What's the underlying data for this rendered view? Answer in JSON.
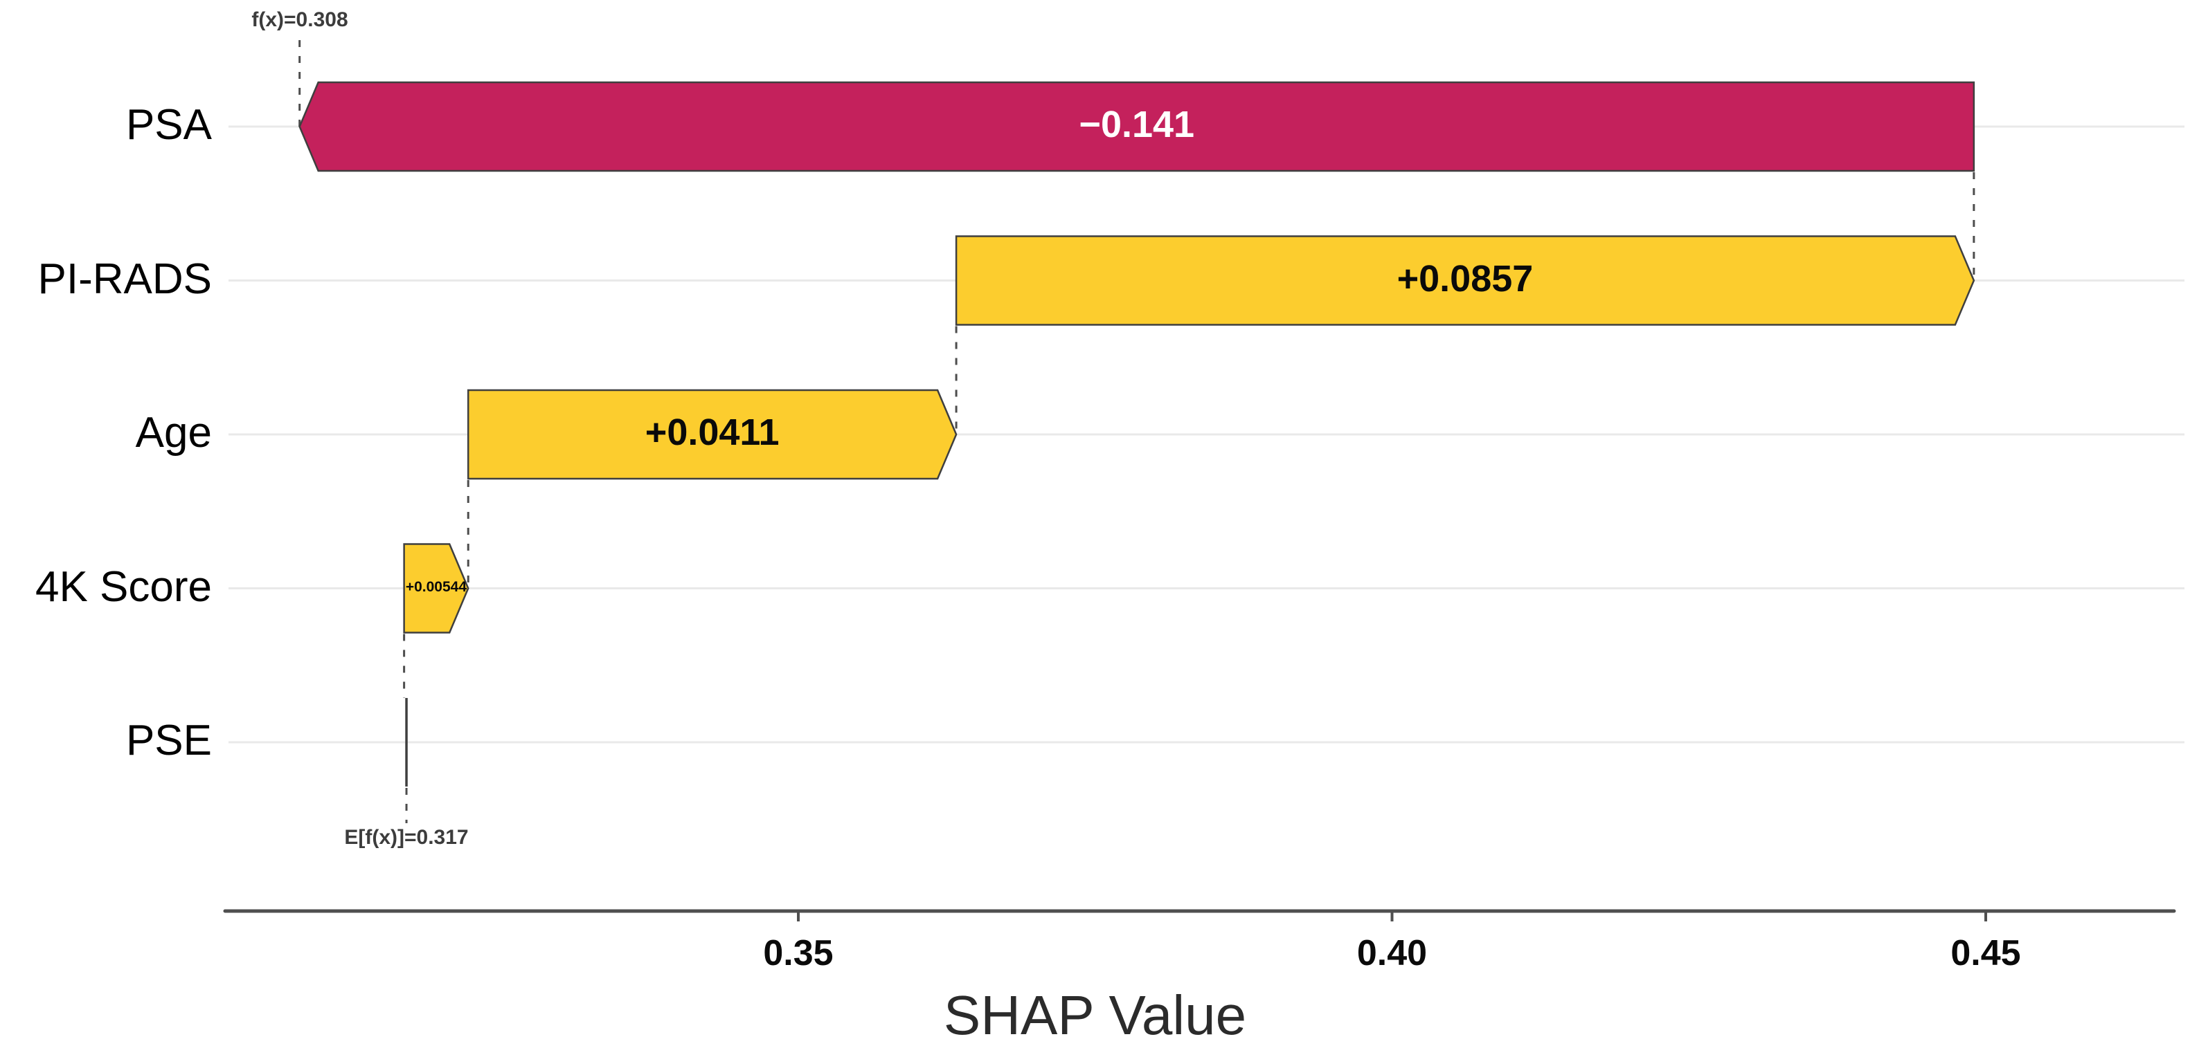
{
  "chart_data": {
    "type": "bar",
    "subtype": "shap-waterfall",
    "title": "",
    "xlabel": "SHAP Value",
    "fx_label": "f(x)=0.308",
    "fx_value": 0.308,
    "base_value_label": "E[f(x)]=0.317",
    "base_value": 0.317,
    "x_ticks": [
      0.35,
      0.4,
      0.45
    ],
    "x_tick_labels": [
      "0.35",
      "0.40",
      "0.45"
    ],
    "xlim": [
      0.302,
      0.467
    ],
    "grid": true,
    "features": [
      {
        "name": "PSA",
        "shap": -0.141,
        "label": "−0.141",
        "start": 0.449,
        "end": 0.308,
        "direction": "negative",
        "label_size": "normal"
      },
      {
        "name": "PI-RADS",
        "shap": 0.0857,
        "label": "+0.0857",
        "start": 0.3633,
        "end": 0.449,
        "direction": "positive",
        "label_size": "normal"
      },
      {
        "name": "Age",
        "shap": 0.0411,
        "label": "+0.0411",
        "start": 0.3222,
        "end": 0.3633,
        "direction": "positive",
        "label_size": "normal"
      },
      {
        "name": "4K Score",
        "shap": 0.00544,
        "label": "+0.00544",
        "start": 0.3168,
        "end": 0.3222,
        "direction": "positive",
        "label_size": "small"
      },
      {
        "name": "PSE",
        "shap": -0.0002,
        "label": "",
        "start": 0.317,
        "end": 0.3168,
        "direction": "zero",
        "label_size": "none"
      }
    ],
    "colors": {
      "positive": "#FCCD2E",
      "negative": "#C4215C",
      "bar_border": "#3F3F3F",
      "positive_text": "#0a0a0a",
      "negative_text": "#ffffff",
      "grid": "#E9E9E9",
      "dashed": "#4D4D4D",
      "axis": "#4F4F4F"
    }
  }
}
